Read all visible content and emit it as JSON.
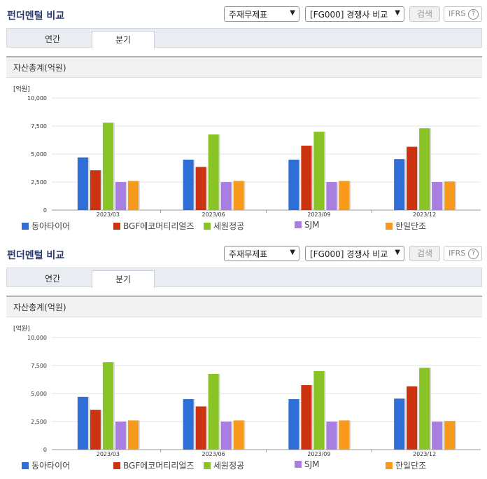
{
  "header": {
    "title": "펀더멘털 비교"
  },
  "controls": {
    "statement_select": "주재무제표",
    "peer_select": "[FG000] 경쟁사 비교",
    "search_label": "검색",
    "ifrs_label": "IFRS",
    "help_glyph": "?"
  },
  "tabs": [
    {
      "label": "연간",
      "active": false
    },
    {
      "label": "분기",
      "active": true
    }
  ],
  "chart_header": {
    "title": "자산총계(억원)",
    "unit": "[억원]"
  },
  "legend": [
    {
      "label": "동아타이어",
      "color": "#2f6ed6"
    },
    {
      "label": "BGF에코머티리얼즈",
      "color": "#cc3311"
    },
    {
      "label": "세원정공",
      "color": "#88c425"
    },
    {
      "label": "SJM",
      "color": "#a87fe0"
    },
    {
      "label": "한일단조",
      "color": "#f79a1b"
    }
  ],
  "chart_data": {
    "type": "bar",
    "title": "자산총계(억원)",
    "ylabel": "[억원]",
    "ylim": [
      0,
      10000
    ],
    "yticks": [
      "0",
      "2,500",
      "5,000",
      "7,500",
      "10,000"
    ],
    "categories": [
      "2023/03",
      "2023/06",
      "2023/09",
      "2023/12"
    ],
    "grid": true,
    "legend_position": "bottom",
    "series": [
      {
        "name": "동아타이어",
        "values": [
          4700,
          4500,
          4500,
          4550
        ],
        "color": "#2f6ed6"
      },
      {
        "name": "BGF에코머티리얼즈",
        "values": [
          3550,
          3850,
          5750,
          5650
        ],
        "color": "#cc3311"
      },
      {
        "name": "세원정공",
        "values": [
          7800,
          6750,
          7000,
          7300
        ],
        "color": "#88c425"
      },
      {
        "name": "SJM",
        "values": [
          2500,
          2500,
          2500,
          2500
        ],
        "color": "#a87fe0"
      },
      {
        "name": "한일단조",
        "values": [
          2600,
          2600,
          2600,
          2550
        ],
        "color": "#f79a1b"
      }
    ]
  }
}
